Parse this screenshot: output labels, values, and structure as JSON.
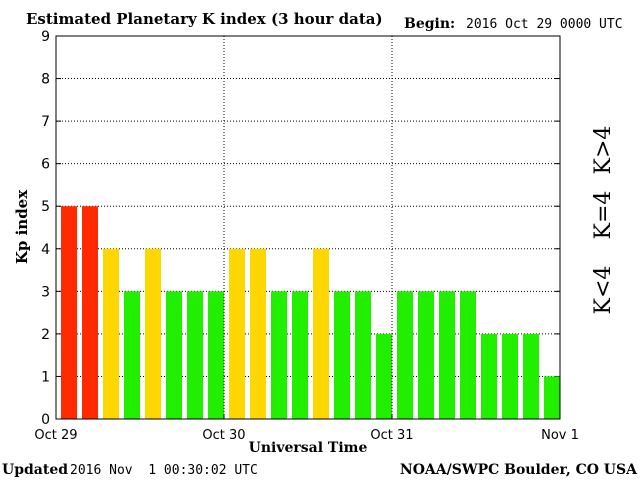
{
  "header": {
    "title": "Estimated Planetary K index (3 hour data)",
    "begin_label": "Begin:",
    "begin_value": "2016 Oct 29 0000 UTC"
  },
  "footer": {
    "updated_label": "Updated",
    "updated_value": "2016 Nov  1 00:30:02 UTC",
    "source": "NOAA/SWPC Boulder, CO USA"
  },
  "legend": {
    "storm": "K>4",
    "active": "K=4",
    "quiet": "K<4"
  },
  "colors": {
    "quiet": "#22ee00",
    "active": "#ffd700",
    "storm": "#ff2a00"
  },
  "chart_data": {
    "type": "bar",
    "title": "Estimated Planetary K index (3 hour data)",
    "xlabel": "Universal Time",
    "ylabel": "Kp index",
    "ylim": [
      0,
      9
    ],
    "yticks": [
      0,
      1,
      2,
      3,
      4,
      5,
      6,
      7,
      8,
      9
    ],
    "xtick_labels": [
      "Oct 29",
      "Oct 30",
      "Oct 31",
      "Nov 1"
    ],
    "interval_hours": 3,
    "values": [
      5,
      5,
      4,
      3,
      4,
      3,
      3,
      3,
      4,
      4,
      3,
      3,
      4,
      3,
      3,
      2,
      3,
      3,
      3,
      3,
      2,
      2,
      2,
      1
    ],
    "grid": true
  }
}
